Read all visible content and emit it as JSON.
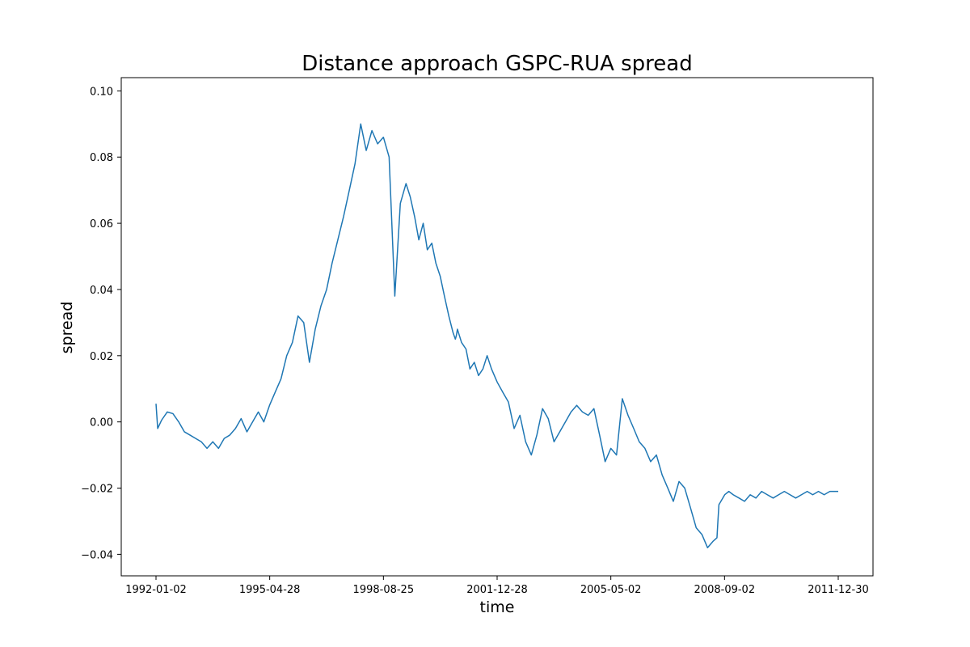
{
  "chart_data": {
    "type": "line",
    "title": "Distance approach GSPC-RUA spread",
    "xlabel": "time",
    "ylabel": "spread",
    "x_range": [
      "1992-01-02",
      "2011-12-30"
    ],
    "ylim": [
      -0.0465,
      0.104
    ],
    "x_tick_labels": [
      "1992-01-02",
      "1995-04-28",
      "1998-08-25",
      "2001-12-28",
      "2005-05-02",
      "2008-09-02",
      "2011-12-30"
    ],
    "y_ticks": [
      -0.04,
      -0.02,
      0.0,
      0.02,
      0.04,
      0.06,
      0.08,
      0.1
    ],
    "y_tick_labels": [
      "−0.04",
      "−0.02",
      "0.00",
      "0.02",
      "0.04",
      "0.06",
      "0.08",
      "0.10"
    ],
    "grid": false,
    "line_color": "#1f77b4",
    "series": [
      {
        "x": [
          "1992-01-02",
          "1992-01-20",
          "1992-03-01",
          "1992-05-01",
          "1992-07-01",
          "1992-09-01",
          "1992-11-01",
          "1993-01-01",
          "1993-03-01",
          "1993-05-01",
          "1993-07-01",
          "1993-09-01",
          "1993-11-01",
          "1994-01-01",
          "1994-03-01",
          "1994-05-01",
          "1994-07-01",
          "1994-09-01",
          "1994-11-01",
          "1995-01-01",
          "1995-03-01",
          "1995-05-01",
          "1995-07-01",
          "1995-09-01",
          "1995-11-01",
          "1996-01-01",
          "1996-03-01",
          "1996-05-01",
          "1996-07-01",
          "1996-09-01",
          "1996-11-01",
          "1997-01-01",
          "1997-03-01",
          "1997-05-01",
          "1997-07-01",
          "1997-09-01",
          "1997-11-01",
          "1998-01-01",
          "1998-03-01",
          "1998-05-01",
          "1998-07-01",
          "1998-09-01",
          "1998-11-01",
          "1999-01-01",
          "1999-03-01",
          "1999-05-01",
          "1999-06-15",
          "1999-08-01",
          "1999-09-15",
          "1999-11-01",
          "1999-12-15",
          "2000-02-01",
          "2000-03-15",
          "2000-05-01",
          "2000-06-15",
          "2000-08-01",
          "2000-09-15",
          "2000-10-10",
          "2000-10-20",
          "2000-11-01",
          "2000-12-15",
          "2001-02-01",
          "2001-03-15",
          "2001-05-01",
          "2001-06-15",
          "2001-08-01",
          "2001-09-15",
          "2001-11-01",
          "2002-01-01",
          "2002-03-01",
          "2002-05-01",
          "2002-07-01",
          "2002-09-01",
          "2002-11-01",
          "2003-01-01",
          "2003-03-01",
          "2003-05-01",
          "2003-07-01",
          "2003-09-01",
          "2003-11-01",
          "2004-01-01",
          "2004-03-01",
          "2004-05-01",
          "2004-07-01",
          "2004-09-01",
          "2004-11-01",
          "2005-01-01",
          "2005-03-01",
          "2005-05-01",
          "2005-07-01",
          "2005-09-01",
          "2005-11-01",
          "2006-01-01",
          "2006-03-01",
          "2006-05-01",
          "2006-07-01",
          "2006-09-01",
          "2006-11-01",
          "2007-01-01",
          "2007-03-01",
          "2007-05-01",
          "2007-07-01",
          "2007-09-01",
          "2007-11-01",
          "2008-01-01",
          "2008-03-01",
          "2008-05-01",
          "2008-06-10",
          "2008-06-20",
          "2008-07-01",
          "2008-09-01",
          "2008-10-15",
          "2008-12-01",
          "2009-02-01",
          "2009-04-01",
          "2009-06-01",
          "2009-08-01",
          "2009-10-01",
          "2009-12-01",
          "2010-02-01",
          "2010-04-01",
          "2010-06-01",
          "2010-08-01",
          "2010-10-01",
          "2010-12-01",
          "2011-02-01",
          "2011-04-01",
          "2011-06-01",
          "2011-08-01",
          "2011-10-01",
          "2011-12-30"
        ],
        "y": [
          0.0055,
          -0.002,
          0.0005,
          0.003,
          0.0025,
          0.0,
          -0.003,
          -0.004,
          -0.005,
          -0.006,
          -0.008,
          -0.006,
          -0.008,
          -0.005,
          -0.004,
          -0.002,
          0.001,
          -0.003,
          0.0,
          0.003,
          0.0,
          0.005,
          0.009,
          0.013,
          0.02,
          0.024,
          0.032,
          0.03,
          0.018,
          0.028,
          0.035,
          0.04,
          0.048,
          0.055,
          0.062,
          0.07,
          0.078,
          0.09,
          0.082,
          0.088,
          0.084,
          0.086,
          0.08,
          0.038,
          0.066,
          0.072,
          0.068,
          0.062,
          0.055,
          0.06,
          0.052,
          0.054,
          0.048,
          0.044,
          0.038,
          0.032,
          0.027,
          0.025,
          0.026,
          0.028,
          0.024,
          0.022,
          0.016,
          0.018,
          0.014,
          0.016,
          0.02,
          0.016,
          0.012,
          0.009,
          0.006,
          -0.002,
          0.002,
          -0.006,
          -0.01,
          -0.004,
          0.004,
          0.001,
          -0.006,
          -0.003,
          0.0,
          0.003,
          0.005,
          0.003,
          0.002,
          0.004,
          -0.004,
          -0.012,
          -0.008,
          -0.01,
          0.007,
          0.002,
          -0.002,
          -0.006,
          -0.008,
          -0.012,
          -0.01,
          -0.016,
          -0.02,
          -0.024,
          -0.018,
          -0.02,
          -0.026,
          -0.032,
          -0.034,
          -0.038,
          -0.036,
          -0.035,
          -0.03,
          -0.025,
          -0.022,
          -0.021,
          -0.022,
          -0.023,
          -0.024,
          -0.022,
          -0.023,
          -0.021,
          -0.022,
          -0.023,
          -0.022,
          -0.021,
          -0.022,
          -0.023,
          -0.022,
          -0.021,
          -0.022,
          -0.021,
          -0.022,
          -0.021,
          -0.021
        ]
      }
    ]
  }
}
